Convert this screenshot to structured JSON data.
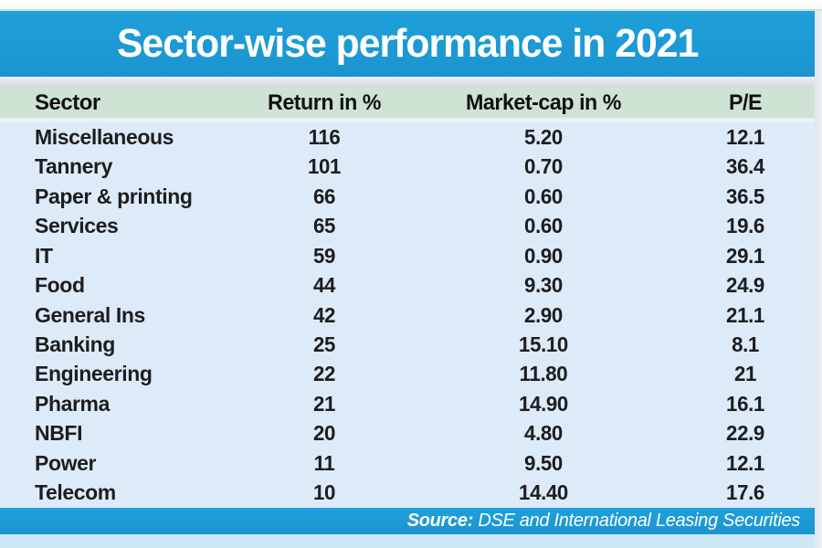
{
  "title": "Sector-wise performance in 2021",
  "table": {
    "columns": [
      "Sector",
      "Return in %",
      "Market-cap in %",
      "P/E"
    ],
    "rows": [
      [
        "Miscellaneous",
        "116",
        "5.20",
        "12.1"
      ],
      [
        "Tannery",
        "101",
        "0.70",
        "36.4"
      ],
      [
        "Paper & printing",
        "66",
        "0.60",
        "36.5"
      ],
      [
        "Services",
        "65",
        "0.60",
        "19.6"
      ],
      [
        "IT",
        "59",
        "0.90",
        "29.1"
      ],
      [
        "Food",
        "44",
        "9.30",
        "24.9"
      ],
      [
        "General Ins",
        "42",
        "2.90",
        "21.1"
      ],
      [
        "Banking",
        "25",
        "15.10",
        "8.1"
      ],
      [
        "Engineering",
        "22",
        "11.80",
        "21"
      ],
      [
        "Pharma",
        "21",
        "14.90",
        "16.1"
      ],
      [
        "NBFI",
        "20",
        "4.80",
        "22.9"
      ],
      [
        "Power",
        "11",
        "9.50",
        "12.1"
      ],
      [
        "Telecom",
        "10",
        "14.40",
        "17.6"
      ]
    ]
  },
  "footer": {
    "source_label": "Source:",
    "source_text": " DSE and International Leasing Securities"
  },
  "colors": {
    "accent_blue": "#1b99d5",
    "header_green": "#cfe3d4",
    "body_light_blue": "#ddebf8",
    "divider_gray": "#d6d8dd",
    "bottom_strip_blue": "#cfe8f5",
    "text_black": "#1d1d1f",
    "text_white": "#ffffff"
  },
  "chart_data": {
    "type": "table",
    "title": "Sector-wise performance in 2021",
    "categories": [
      "Miscellaneous",
      "Tannery",
      "Paper & printing",
      "Services",
      "IT",
      "Food",
      "General Ins",
      "Banking",
      "Engineering",
      "Pharma",
      "NBFI",
      "Power",
      "Telecom"
    ],
    "series": [
      {
        "name": "Return in %",
        "values": [
          116,
          101,
          66,
          65,
          59,
          44,
          42,
          25,
          22,
          21,
          20,
          11,
          10
        ]
      },
      {
        "name": "Market-cap in %",
        "values": [
          5.2,
          0.7,
          0.6,
          0.6,
          0.9,
          9.3,
          2.9,
          15.1,
          11.8,
          14.9,
          4.8,
          9.5,
          14.4
        ]
      },
      {
        "name": "P/E",
        "values": [
          12.1,
          36.4,
          36.5,
          19.6,
          29.1,
          24.9,
          21.1,
          8.1,
          21,
          16.1,
          22.9,
          12.1,
          17.6
        ]
      }
    ],
    "source": "DSE and International Leasing Securities",
    "layout": {
      "header_row": true,
      "grid": false,
      "sorted_by": "Return in % descending"
    }
  }
}
